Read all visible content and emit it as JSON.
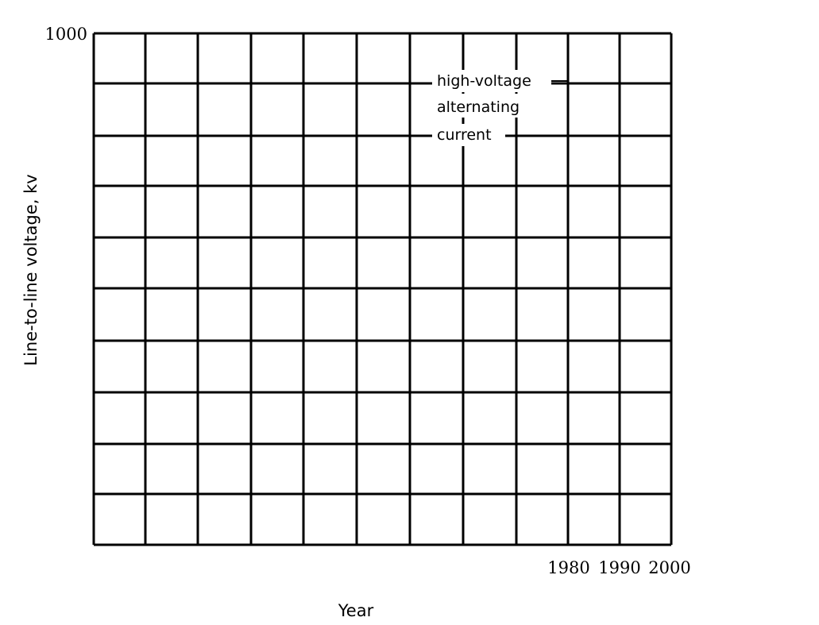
{
  "chart_data": {
    "type": "line",
    "title": "",
    "xlabel": "Year",
    "ylabel": "Line-to-line voltage, kv",
    "x_tick_labels": [
      "1980",
      "1990",
      "2000"
    ],
    "y_tick_labels": [
      "1000"
    ],
    "ylim": [
      0,
      1000
    ],
    "grid": true,
    "series": [],
    "annotations": [
      {
        "text": "high-voltage"
      },
      {
        "text": "alternating"
      },
      {
        "text": "current"
      }
    ]
  }
}
